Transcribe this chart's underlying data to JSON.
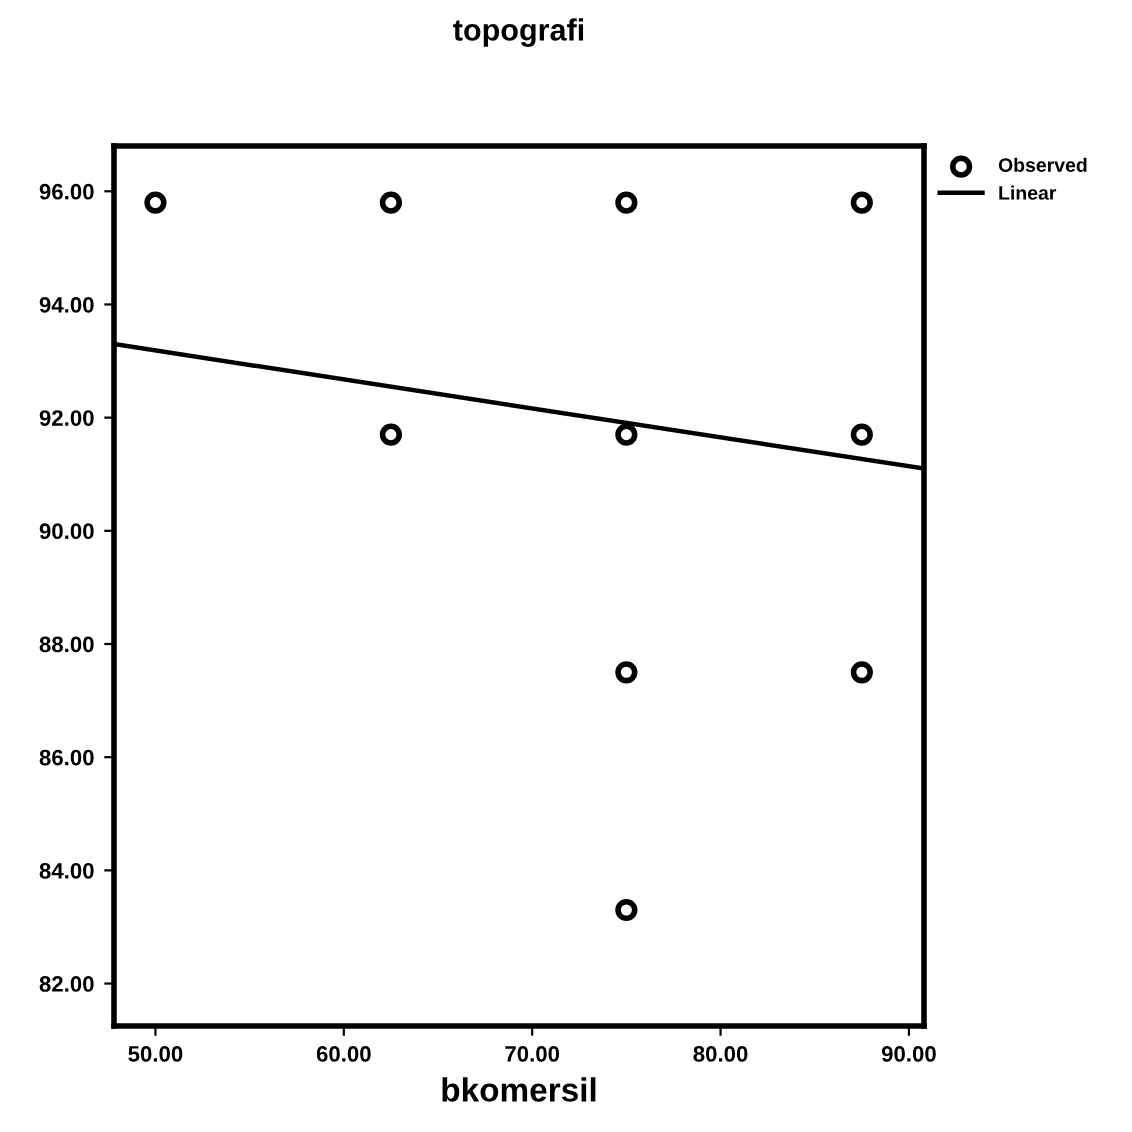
{
  "chart_data": {
    "type": "scatter",
    "title": "topografi",
    "xlabel": "bkomersil",
    "series": [
      {
        "name": "Observed",
        "color": "#000000",
        "marker": "circle",
        "x": [
          50,
          62.5,
          75,
          87.5,
          62.5,
          75,
          87.5,
          75,
          87.5,
          75
        ],
        "values": [
          95.8,
          95.8,
          95.8,
          95.8,
          91.7,
          91.7,
          91.7,
          87.5,
          87.5,
          83.3
        ]
      },
      {
        "name": "Linear",
        "type": "line",
        "color": "#000000",
        "marker": "none",
        "line_style": "solid",
        "x": [
          47.8,
          90.8
        ],
        "values": [
          93.3,
          91.1
        ]
      }
    ],
    "xlim": [
      47.8,
      90.8
    ],
    "ylim": [
      81.25,
      96.8
    ],
    "xticks": [
      {
        "value": 50,
        "label": "50.00"
      },
      {
        "value": 60,
        "label": "60.00"
      },
      {
        "value": 70,
        "label": "70.00"
      },
      {
        "value": 80,
        "label": "80.00"
      },
      {
        "value": 90,
        "label": "90.00"
      }
    ],
    "yticks": [
      {
        "value": 82,
        "label": "82.00"
      },
      {
        "value": 84,
        "label": "84.00"
      },
      {
        "value": 86,
        "label": "86.00"
      },
      {
        "value": 88,
        "label": "88.00"
      },
      {
        "value": 90,
        "label": "90.00"
      },
      {
        "value": 92,
        "label": "92.00"
      },
      {
        "value": 94,
        "label": "94.00"
      },
      {
        "value": 96,
        "label": "96.00"
      }
    ],
    "grid": false,
    "legend": "top right"
  }
}
